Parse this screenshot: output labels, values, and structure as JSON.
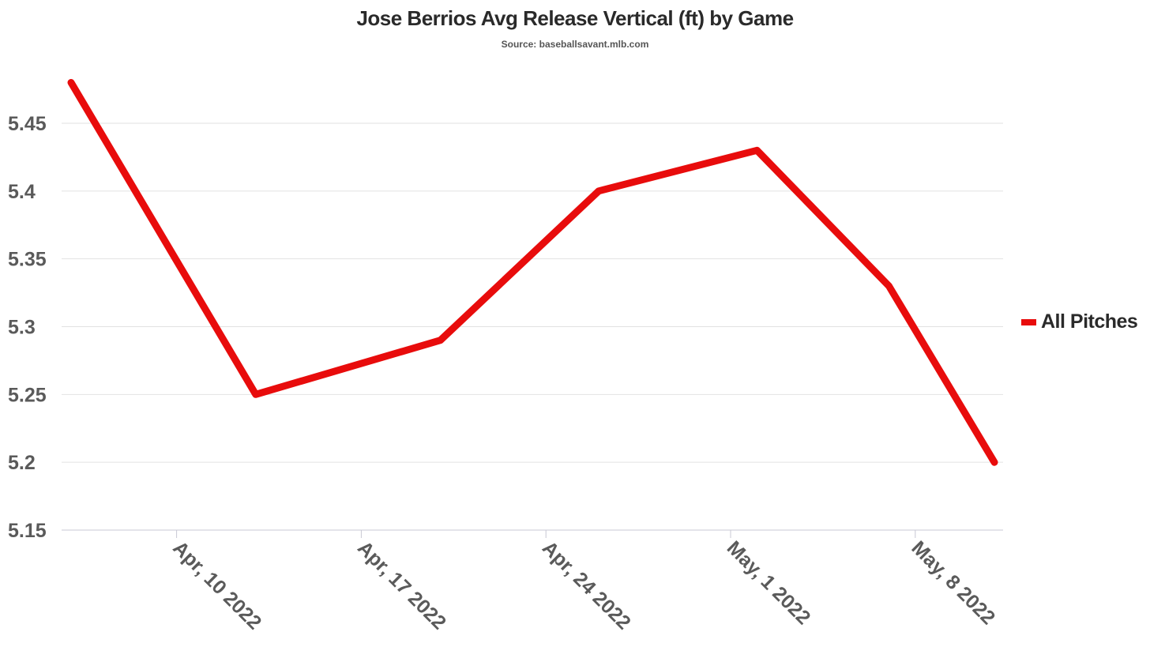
{
  "chart_data": {
    "type": "line",
    "title": "Jose Berrios Avg Release Vertical (ft) by Game",
    "subtitle": "Source: baseballsavant.mlb.com",
    "xlabel": "",
    "ylabel": "",
    "x_ticks": [
      "Apr, 10 2022",
      "Apr, 17 2022",
      "Apr, 24 2022",
      "May, 1 2022",
      "May, 8 2022"
    ],
    "x_tick_dates": [
      "2022-04-10",
      "2022-04-17",
      "2022-04-24",
      "2022-05-01",
      "2022-05-08"
    ],
    "xlim": [
      "2022-04-06",
      "2022-05-11"
    ],
    "ylim": [
      5.15,
      5.48
    ],
    "y_ticks": [
      "5.15",
      "5.2",
      "5.25",
      "5.3",
      "5.35",
      "5.4",
      "5.45"
    ],
    "grid": true,
    "legend_position": "right",
    "series": [
      {
        "name": "All Pitches",
        "color": "#e80c0c",
        "x": [
          "2022-04-06",
          "2022-04-13",
          "2022-04-20",
          "2022-04-26",
          "2022-05-02",
          "2022-05-07",
          "2022-05-11"
        ],
        "values": [
          5.48,
          5.25,
          5.29,
          5.4,
          5.43,
          5.33,
          5.2
        ]
      }
    ]
  }
}
